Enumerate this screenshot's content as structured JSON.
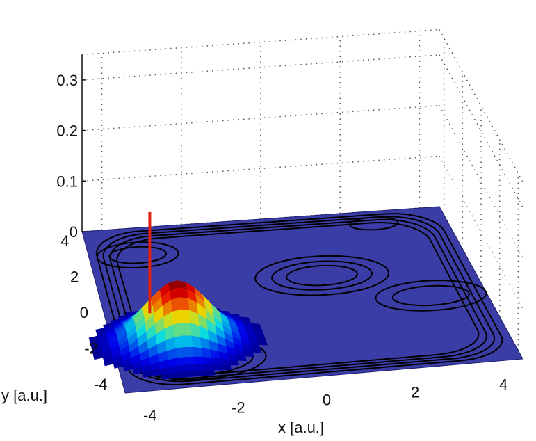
{
  "chart_data": {
    "type": "surface",
    "xlabel": "x [a.u.]",
    "ylabel": "y [a.u.]",
    "zlabel": "",
    "x_ticks": [
      -4,
      -2,
      0,
      2,
      4
    ],
    "y_ticks": [
      -4,
      -2,
      0,
      2,
      4
    ],
    "z_ticks": [
      0,
      0.1,
      0.2,
      0.3
    ],
    "x_tick_labels": [
      "-4",
      "-2",
      "0",
      "2",
      "4"
    ],
    "y_tick_labels": [
      "-4",
      "-2",
      "0",
      "2",
      "4"
    ],
    "z_tick_labels": [
      "0",
      "0.1",
      "0.2",
      "0.3"
    ],
    "xlim": [
      -4.5,
      4.5
    ],
    "ylim": [
      -4.5,
      4.5
    ],
    "zlim": [
      0,
      0.35
    ],
    "grid": true,
    "colormap": "jet",
    "plane_color": "#2a2d9e",
    "contour_color": "#000000",
    "spike_color": "#e02010",
    "wavepacket": {
      "center_x": -3.0,
      "center_y": -2.0,
      "sigma": 0.75,
      "peak_z": 0.12
    },
    "spike": {
      "x": -3.5,
      "y": -0.8,
      "z_top": 0.22
    },
    "potential_wells": [
      {
        "x": -3.3,
        "y": 3.0
      },
      {
        "x": 2.7,
        "y": 3.8
      },
      {
        "x": 0.9,
        "y": 1.1
      },
      {
        "x": 3.2,
        "y": -0.5
      },
      {
        "x": -2.6,
        "y": -3.0
      }
    ]
  }
}
